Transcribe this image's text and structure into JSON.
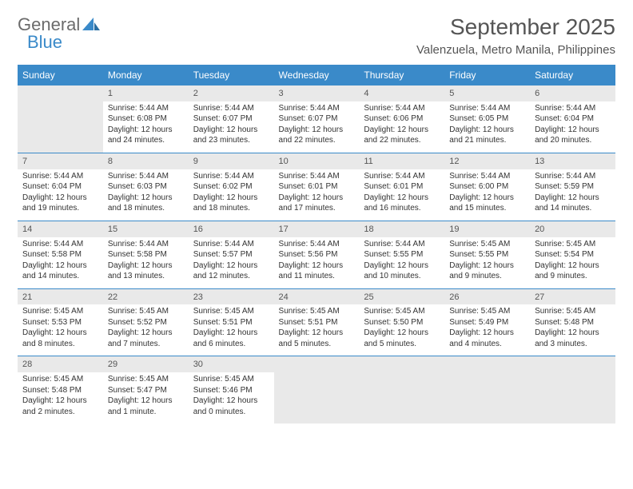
{
  "brand": {
    "part1": "General",
    "part2": "Blue"
  },
  "title": "September 2025",
  "location": "Valenzuela, Metro Manila, Philippines",
  "colors": {
    "header_bg": "#3a8ac9",
    "header_text": "#ffffff",
    "daynum_bg": "#e9e9e9",
    "text": "#333333",
    "title_text": "#555555",
    "border": "#3a8ac9",
    "page_bg": "#ffffff"
  },
  "fonts": {
    "title_size_pt": 21,
    "location_size_pt": 11,
    "header_size_pt": 9,
    "daynum_size_pt": 8,
    "cell_size_pt": 7.5
  },
  "weekdays": [
    "Sunday",
    "Monday",
    "Tuesday",
    "Wednesday",
    "Thursday",
    "Friday",
    "Saturday"
  ],
  "weeks": [
    {
      "nums": [
        "",
        "1",
        "2",
        "3",
        "4",
        "5",
        "6"
      ],
      "cells": [
        "",
        "Sunrise: 5:44 AM\nSunset: 6:08 PM\nDaylight: 12 hours and 24 minutes.",
        "Sunrise: 5:44 AM\nSunset: 6:07 PM\nDaylight: 12 hours and 23 minutes.",
        "Sunrise: 5:44 AM\nSunset: 6:07 PM\nDaylight: 12 hours and 22 minutes.",
        "Sunrise: 5:44 AM\nSunset: 6:06 PM\nDaylight: 12 hours and 22 minutes.",
        "Sunrise: 5:44 AM\nSunset: 6:05 PM\nDaylight: 12 hours and 21 minutes.",
        "Sunrise: 5:44 AM\nSunset: 6:04 PM\nDaylight: 12 hours and 20 minutes."
      ]
    },
    {
      "nums": [
        "7",
        "8",
        "9",
        "10",
        "11",
        "12",
        "13"
      ],
      "cells": [
        "Sunrise: 5:44 AM\nSunset: 6:04 PM\nDaylight: 12 hours and 19 minutes.",
        "Sunrise: 5:44 AM\nSunset: 6:03 PM\nDaylight: 12 hours and 18 minutes.",
        "Sunrise: 5:44 AM\nSunset: 6:02 PM\nDaylight: 12 hours and 18 minutes.",
        "Sunrise: 5:44 AM\nSunset: 6:01 PM\nDaylight: 12 hours and 17 minutes.",
        "Sunrise: 5:44 AM\nSunset: 6:01 PM\nDaylight: 12 hours and 16 minutes.",
        "Sunrise: 5:44 AM\nSunset: 6:00 PM\nDaylight: 12 hours and 15 minutes.",
        "Sunrise: 5:44 AM\nSunset: 5:59 PM\nDaylight: 12 hours and 14 minutes."
      ]
    },
    {
      "nums": [
        "14",
        "15",
        "16",
        "17",
        "18",
        "19",
        "20"
      ],
      "cells": [
        "Sunrise: 5:44 AM\nSunset: 5:58 PM\nDaylight: 12 hours and 14 minutes.",
        "Sunrise: 5:44 AM\nSunset: 5:58 PM\nDaylight: 12 hours and 13 minutes.",
        "Sunrise: 5:44 AM\nSunset: 5:57 PM\nDaylight: 12 hours and 12 minutes.",
        "Sunrise: 5:44 AM\nSunset: 5:56 PM\nDaylight: 12 hours and 11 minutes.",
        "Sunrise: 5:44 AM\nSunset: 5:55 PM\nDaylight: 12 hours and 10 minutes.",
        "Sunrise: 5:45 AM\nSunset: 5:55 PM\nDaylight: 12 hours and 9 minutes.",
        "Sunrise: 5:45 AM\nSunset: 5:54 PM\nDaylight: 12 hours and 9 minutes."
      ]
    },
    {
      "nums": [
        "21",
        "22",
        "23",
        "24",
        "25",
        "26",
        "27"
      ],
      "cells": [
        "Sunrise: 5:45 AM\nSunset: 5:53 PM\nDaylight: 12 hours and 8 minutes.",
        "Sunrise: 5:45 AM\nSunset: 5:52 PM\nDaylight: 12 hours and 7 minutes.",
        "Sunrise: 5:45 AM\nSunset: 5:51 PM\nDaylight: 12 hours and 6 minutes.",
        "Sunrise: 5:45 AM\nSunset: 5:51 PM\nDaylight: 12 hours and 5 minutes.",
        "Sunrise: 5:45 AM\nSunset: 5:50 PM\nDaylight: 12 hours and 5 minutes.",
        "Sunrise: 5:45 AM\nSunset: 5:49 PM\nDaylight: 12 hours and 4 minutes.",
        "Sunrise: 5:45 AM\nSunset: 5:48 PM\nDaylight: 12 hours and 3 minutes."
      ]
    },
    {
      "nums": [
        "28",
        "29",
        "30",
        "",
        "",
        "",
        ""
      ],
      "cells": [
        "Sunrise: 5:45 AM\nSunset: 5:48 PM\nDaylight: 12 hours and 2 minutes.",
        "Sunrise: 5:45 AM\nSunset: 5:47 PM\nDaylight: 12 hours and 1 minute.",
        "Sunrise: 5:45 AM\nSunset: 5:46 PM\nDaylight: 12 hours and 0 minutes.",
        "",
        "",
        "",
        ""
      ]
    }
  ]
}
